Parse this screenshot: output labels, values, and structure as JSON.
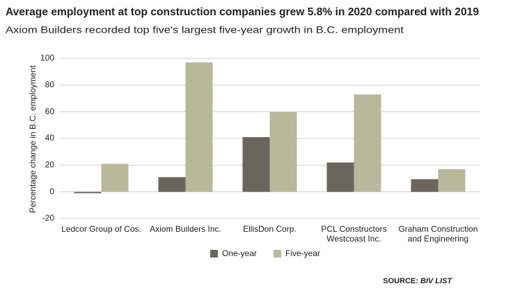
{
  "chart_data": {
    "type": "bar",
    "title": "Average employment at top construction companies grew 5.8% in 2020 compared with 2019",
    "subtitle": "Axiom Builders recorded top five's largest five-year growth in B.C. employment",
    "y_label": "Percentage change in B.C. employment",
    "categories": [
      "Ledcor Group of Cos.",
      "Axiom Builders Inc.",
      "EllisDon Corp.",
      "PCL Constructors Westcoast Inc.",
      "Graham Construction and Engineering"
    ],
    "series": [
      {
        "name": "One-year",
        "color": "#6b655c",
        "values": [
          -1,
          11,
          41,
          22,
          9.5
        ]
      },
      {
        "name": "Five-year",
        "color": "#b8b89a",
        "values": [
          21,
          97,
          60,
          73,
          17
        ]
      }
    ],
    "ylim": [
      -20,
      100
    ],
    "yticks": [
      -20,
      0,
      20,
      40,
      60,
      80,
      100
    ],
    "grid": true,
    "source_label": "SOURCE:",
    "source": "BIV LIST"
  }
}
